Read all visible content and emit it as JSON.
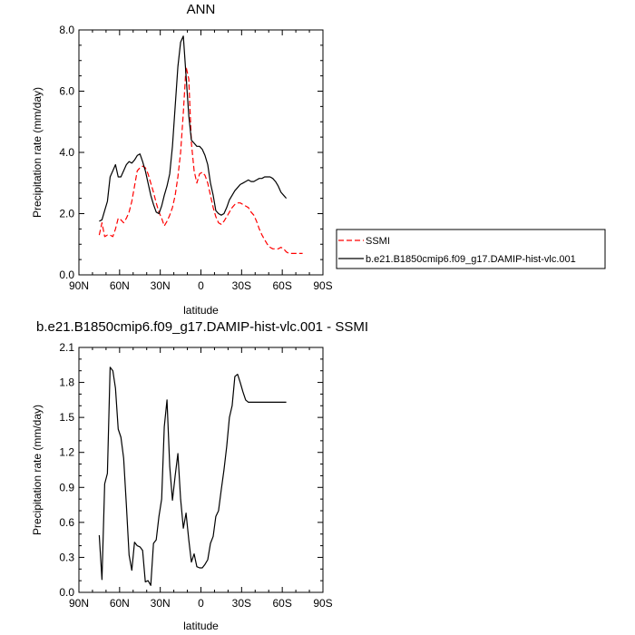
{
  "chart_data": [
    {
      "type": "line",
      "title": "ANN",
      "xlabel": "latitude",
      "ylabel": "Precipitation rate (mm/day)",
      "xlim": [
        90,
        -90
      ],
      "ylim": [
        0,
        8
      ],
      "x_ticks": [
        90,
        60,
        30,
        0,
        -30,
        -60,
        -90
      ],
      "x_tick_labels": [
        "90N",
        "60N",
        "30N",
        "0",
        "30S",
        "60S",
        "90S"
      ],
      "y_ticks": [
        0,
        2,
        4,
        6,
        8
      ],
      "y_tick_labels": [
        "0.0",
        "2.0",
        "4.0",
        "6.0",
        "8.0"
      ],
      "legend_position": "right",
      "series": [
        {
          "name": "SSMI",
          "color": "#ff0000",
          "dash": "dashed",
          "x": [
            75,
            73,
            71,
            69,
            67,
            65,
            63,
            61,
            59,
            57,
            55,
            53,
            51,
            49,
            47,
            45,
            43,
            41,
            39,
            37,
            35,
            33,
            31,
            29,
            27,
            25,
            23,
            21,
            19,
            17,
            15,
            13,
            11,
            9,
            7,
            5,
            3,
            1,
            -1,
            -3,
            -5,
            -7,
            -9,
            -11,
            -13,
            -15,
            -17,
            -19,
            -21,
            -23,
            -25,
            -27,
            -29,
            -31,
            -33,
            -35,
            -37,
            -39,
            -41,
            -43,
            -45,
            -47,
            -49,
            -51,
            -53,
            -55,
            -57,
            -59,
            -61,
            -63,
            -65,
            -67,
            -69,
            -71,
            -73,
            -75
          ],
          "values": [
            1.3,
            1.7,
            1.25,
            1.3,
            1.3,
            1.25,
            1.5,
            1.85,
            1.8,
            1.7,
            1.85,
            2.05,
            2.4,
            2.9,
            3.4,
            3.5,
            3.55,
            3.5,
            3.3,
            3.0,
            2.7,
            2.35,
            2.05,
            1.85,
            1.6,
            1.75,
            1.95,
            2.2,
            2.6,
            3.2,
            4.0,
            5.3,
            6.8,
            6.4,
            4.3,
            3.4,
            3.0,
            3.3,
            3.35,
            3.25,
            3.0,
            2.6,
            2.2,
            1.9,
            1.7,
            1.65,
            1.75,
            1.9,
            2.05,
            2.2,
            2.3,
            2.35,
            2.35,
            2.3,
            2.25,
            2.2,
            2.05,
            1.95,
            1.75,
            1.5,
            1.3,
            1.15,
            1.0,
            0.9,
            0.85,
            0.85,
            0.85,
            0.9,
            0.85,
            0.75,
            0.7,
            0.7,
            0.7,
            0.7,
            0.7,
            0.7
          ]
        },
        {
          "name": "b.e21.B1850cmip6.f09_g17.DAMIP-hist-vlc.001",
          "color": "#000000",
          "dash": "solid",
          "x": [
            75,
            73,
            71,
            69,
            67,
            65,
            63,
            61,
            59,
            57,
            55,
            53,
            51,
            49,
            47,
            45,
            43,
            41,
            39,
            37,
            35,
            33,
            31,
            29,
            27,
            25,
            23,
            21,
            19,
            17,
            15,
            13,
            11,
            9,
            7,
            5,
            3,
            1,
            -1,
            -3,
            -5,
            -7,
            -9,
            -11,
            -13,
            -15,
            -17,
            -19,
            -21,
            -23,
            -25,
            -27,
            -29,
            -31,
            -33,
            -35,
            -37,
            -39,
            -41,
            -43,
            -45,
            -47,
            -49,
            -51,
            -53,
            -55,
            -57,
            -59,
            -61,
            -63
          ],
          "values": [
            1.75,
            1.8,
            2.1,
            2.4,
            3.2,
            3.4,
            3.6,
            3.2,
            3.2,
            3.4,
            3.6,
            3.7,
            3.65,
            3.75,
            3.9,
            3.95,
            3.7,
            3.4,
            3.0,
            2.6,
            2.3,
            2.05,
            2.0,
            2.25,
            2.6,
            2.9,
            3.3,
            4.2,
            5.5,
            6.8,
            7.6,
            7.8,
            6.5,
            5.2,
            4.4,
            4.3,
            4.2,
            4.2,
            4.1,
            3.9,
            3.6,
            3.0,
            2.6,
            2.1,
            2.0,
            1.95,
            2.0,
            2.2,
            2.45,
            2.6,
            2.75,
            2.85,
            2.95,
            3.0,
            3.05,
            3.1,
            3.05,
            3.05,
            3.1,
            3.15,
            3.15,
            3.2,
            3.2,
            3.2,
            3.15,
            3.05,
            2.9,
            2.7,
            2.6,
            2.5
          ]
        }
      ]
    },
    {
      "type": "line",
      "title": "b.e21.B1850cmip6.f09_g17.DAMIP-hist-vlc.001 - SSMI",
      "xlabel": "latitude",
      "ylabel": "Precipitation rate (mm/day)",
      "xlim": [
        90,
        -90
      ],
      "ylim": [
        0,
        2.1
      ],
      "x_ticks": [
        90,
        60,
        30,
        0,
        -30,
        -60,
        -90
      ],
      "x_tick_labels": [
        "90N",
        "60N",
        "30N",
        "0",
        "30S",
        "60S",
        "90S"
      ],
      "y_ticks": [
        0,
        0.3,
        0.6,
        0.9,
        1.2,
        1.5,
        1.8,
        2.1
      ],
      "y_tick_labels": [
        "0.0",
        "0.3",
        "0.6",
        "0.9",
        "1.2",
        "1.5",
        "1.8",
        "2.1"
      ],
      "series": [
        {
          "name": "",
          "color": "#000000",
          "dash": "solid",
          "x": [
            75,
            73,
            71,
            69,
            67,
            65,
            63,
            61,
            59,
            57,
            55,
            53,
            51,
            49,
            47,
            45,
            43,
            41,
            39,
            37,
            35,
            33,
            31,
            29,
            27,
            25,
            23,
            21,
            19,
            17,
            15,
            13,
            11,
            9,
            7,
            5,
            3,
            1,
            -1,
            -3,
            -5,
            -7,
            -9,
            -11,
            -13,
            -15,
            -17,
            -19,
            -21,
            -23,
            -25,
            -27,
            -29,
            -31,
            -33,
            -35,
            -37,
            -39,
            -41,
            -43,
            -45,
            -47,
            -49,
            -51,
            -53,
            -55,
            -57,
            -59,
            -61,
            -63
          ],
          "values": [
            0.49,
            0.11,
            0.93,
            1.02,
            1.93,
            1.9,
            1.75,
            1.4,
            1.33,
            1.15,
            0.75,
            0.32,
            0.19,
            0.43,
            0.4,
            0.39,
            0.36,
            0.09,
            0.1,
            0.06,
            0.42,
            0.45,
            0.65,
            0.8,
            1.42,
            1.65,
            1.08,
            0.79,
            1.0,
            1.19,
            0.8,
            0.55,
            0.68,
            0.45,
            0.26,
            0.33,
            0.22,
            0.21,
            0.21,
            0.24,
            0.28,
            0.42,
            0.48,
            0.65,
            0.7,
            0.88,
            1.05,
            1.25,
            1.5,
            1.6,
            1.85,
            1.87,
            1.8,
            1.72,
            1.65,
            1.63,
            1.63,
            1.63,
            1.63,
            1.63,
            1.63,
            1.63,
            1.63,
            1.63,
            1.63,
            1.63,
            1.63,
            1.63,
            1.63,
            1.63
          ]
        }
      ]
    }
  ]
}
